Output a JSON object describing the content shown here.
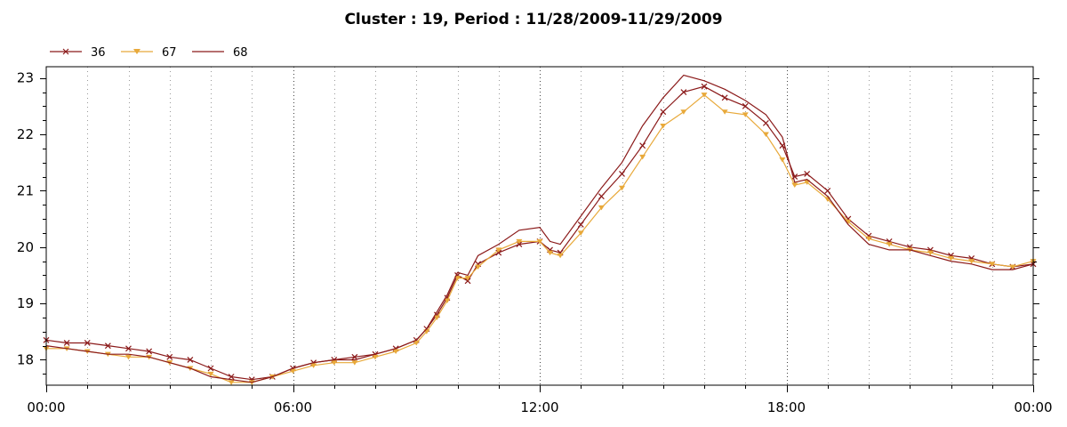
{
  "chart_data": {
    "type": "line",
    "title": "Cluster : 19, Period : 11/28/2009-11/29/2009",
    "xlabel": "",
    "ylabel": "",
    "x_ticks": [
      "00:00",
      "06:00",
      "12:00",
      "18:00",
      "00:00"
    ],
    "x_tick_hours": [
      0,
      6,
      12,
      18,
      24
    ],
    "xlim": [
      0,
      24
    ],
    "y_ticks": [
      "18",
      "19",
      "20",
      "21",
      "22",
      "23"
    ],
    "ylim": [
      17.55,
      23.2
    ],
    "grid": "vertical dotted",
    "legend_placement": "top-left",
    "series": [
      {
        "name": "36",
        "color": "#8b1a1a",
        "marker": "x",
        "x": [
          0,
          0.5,
          1,
          1.5,
          2,
          2.5,
          3,
          3.5,
          4,
          4.5,
          5,
          5.5,
          6,
          6.5,
          7,
          7.5,
          8,
          8.5,
          9,
          9.25,
          9.5,
          9.75,
          10,
          10.25,
          10.5,
          11,
          11.5,
          12,
          12.25,
          12.5,
          13,
          13.5,
          14,
          14.5,
          15,
          15.5,
          16,
          16.5,
          17,
          17.5,
          17.9,
          18.2,
          18.5,
          19,
          19.5,
          20,
          20.5,
          21,
          21.5,
          22,
          22.5,
          23,
          23.5,
          24
        ],
        "y": [
          18.35,
          18.3,
          18.3,
          18.25,
          18.2,
          18.15,
          18.05,
          18.0,
          17.85,
          17.7,
          17.65,
          17.7,
          17.85,
          17.95,
          18.0,
          18.05,
          18.1,
          18.2,
          18.35,
          18.55,
          18.8,
          19.1,
          19.5,
          19.4,
          19.7,
          19.9,
          20.05,
          20.1,
          19.95,
          19.9,
          20.4,
          20.9,
          21.3,
          21.8,
          22.4,
          22.75,
          22.85,
          22.65,
          22.5,
          22.2,
          21.8,
          21.25,
          21.3,
          21.0,
          20.5,
          20.2,
          20.1,
          20.0,
          19.95,
          19.85,
          19.8,
          19.7,
          19.65,
          19.7
        ]
      },
      {
        "name": "67",
        "color": "#e8a93a",
        "marker": "triangle-down",
        "x": [
          0,
          0.5,
          1,
          1.5,
          2,
          2.5,
          3,
          3.5,
          4,
          4.5,
          5,
          5.5,
          6,
          6.5,
          7,
          7.5,
          8,
          8.5,
          9,
          9.25,
          9.5,
          9.75,
          10,
          10.25,
          10.5,
          11,
          11.5,
          12,
          12.25,
          12.5,
          13,
          13.5,
          14,
          14.5,
          15,
          15.5,
          16,
          16.5,
          17,
          17.5,
          17.9,
          18.2,
          18.5,
          19,
          19.5,
          20,
          20.5,
          21,
          21.5,
          22,
          22.5,
          23,
          23.5,
          24
        ],
        "y": [
          18.2,
          18.2,
          18.15,
          18.1,
          18.05,
          18.05,
          17.95,
          17.85,
          17.75,
          17.6,
          17.6,
          17.7,
          17.8,
          17.9,
          17.95,
          17.95,
          18.05,
          18.15,
          18.3,
          18.5,
          18.75,
          19.05,
          19.45,
          19.45,
          19.65,
          19.95,
          20.1,
          20.1,
          19.9,
          19.85,
          20.25,
          20.7,
          21.05,
          21.6,
          22.15,
          22.4,
          22.7,
          22.4,
          22.35,
          22.0,
          21.55,
          21.1,
          21.15,
          20.85,
          20.45,
          20.15,
          20.05,
          19.95,
          19.9,
          19.8,
          19.75,
          19.7,
          19.65,
          19.75
        ]
      },
      {
        "name": "68",
        "color": "#8b1a1a",
        "marker": "none",
        "x": [
          0,
          0.5,
          1,
          1.5,
          2,
          2.5,
          3,
          3.5,
          4,
          4.5,
          5,
          5.5,
          6,
          6.5,
          7,
          7.5,
          8,
          8.5,
          9,
          9.25,
          9.5,
          9.75,
          10,
          10.25,
          10.5,
          11,
          11.5,
          12,
          12.25,
          12.5,
          13,
          13.5,
          14,
          14.5,
          15,
          15.5,
          16,
          16.5,
          17,
          17.5,
          17.9,
          18.2,
          18.5,
          19,
          19.5,
          20,
          20.5,
          21,
          21.5,
          22,
          22.5,
          23,
          23.5,
          24
        ],
        "y": [
          18.25,
          18.2,
          18.15,
          18.1,
          18.1,
          18.05,
          17.95,
          17.85,
          17.7,
          17.65,
          17.6,
          17.7,
          17.85,
          17.95,
          18.0,
          18.0,
          18.1,
          18.2,
          18.35,
          18.55,
          18.85,
          19.15,
          19.55,
          19.5,
          19.85,
          20.05,
          20.3,
          20.35,
          20.1,
          20.05,
          20.55,
          21.05,
          21.5,
          22.15,
          22.65,
          23.05,
          22.95,
          22.8,
          22.6,
          22.35,
          21.95,
          21.15,
          21.2,
          20.9,
          20.4,
          20.05,
          19.95,
          19.95,
          19.85,
          19.75,
          19.7,
          19.6,
          19.6,
          19.7
        ]
      }
    ]
  }
}
